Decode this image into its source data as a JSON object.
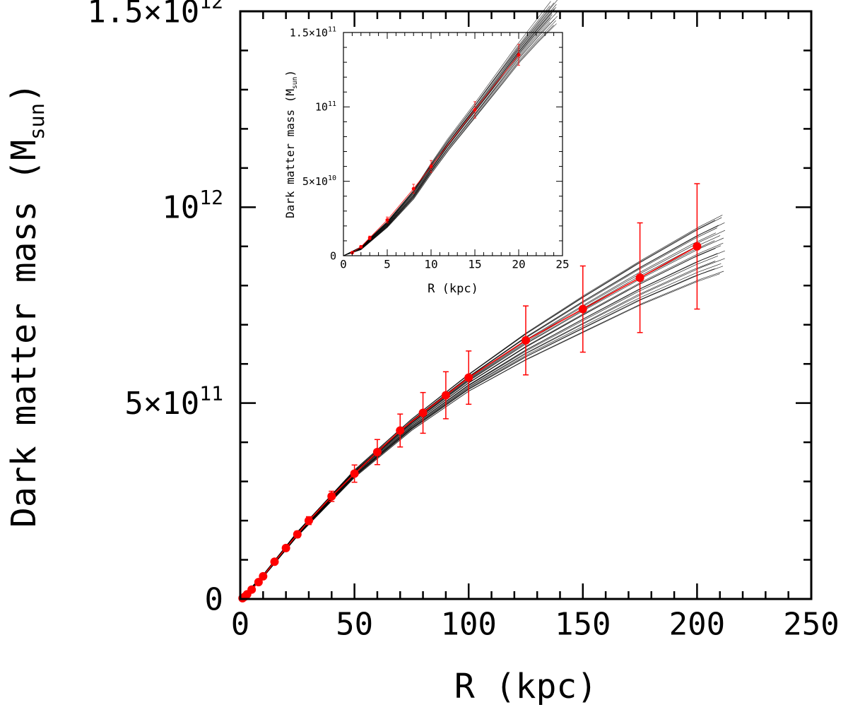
{
  "chart_data": [
    {
      "panel": "main",
      "type": "line",
      "xlabel": "R (kpc)",
      "ylabel": "Dark matter mass",
      "ylabel_unit": "M",
      "ylabel_unit_sub": "sun",
      "xlim": [
        0,
        250
      ],
      "ylim": [
        0,
        1500000000000.0
      ],
      "x_ticks": [
        0,
        50,
        100,
        150,
        200,
        250
      ],
      "x_tick_labels": [
        "0",
        "50",
        "100",
        "150",
        "200",
        "250"
      ],
      "y_ticks": [
        0,
        500000000000.0,
        1000000000000.0,
        1500000000000.0
      ],
      "y_tick_labels": [
        {
          "base": "0",
          "exp": ""
        },
        {
          "base": "5×10",
          "exp": "11"
        },
        {
          "base": "10",
          "exp": "12"
        },
        {
          "base": "1.5×10",
          "exp": "12"
        }
      ],
      "grid": false,
      "series": [
        {
          "color": "#ff0000",
          "style": "points with error bars and connecting line",
          "x": [
            1,
            2,
            3,
            5,
            8,
            10,
            15,
            20,
            25,
            30,
            40,
            50,
            60,
            70,
            80,
            90,
            100,
            125,
            150,
            175,
            200
          ],
          "y": [
            2000000000.0,
            6000000000.0,
            12000000000.0,
            24000000000.0,
            43000000000.0,
            58000000000.0,
            95000000000.0,
            130000000000.0,
            165000000000.0,
            200000000000.0,
            262000000000.0,
            320000000000.0,
            375000000000.0,
            430000000000.0,
            475000000000.0,
            520000000000.0,
            565000000000.0,
            660000000000.0,
            740000000000.0,
            820000000000.0,
            900000000000.0
          ],
          "y_err": [
            100000000.0,
            300000000.0,
            600000000.0,
            1200000000.0,
            2000000000.0,
            3000000000.0,
            5000000000.0,
            6500000000.0,
            8000000000.0,
            10000000000.0,
            13000000000.0,
            22000000000.0,
            32000000000.0,
            42000000000.0,
            52000000000.0,
            60000000000.0,
            68000000000.0,
            88000000000.0,
            110000000000.0,
            140000000000.0,
            160000000000.0
          ]
        },
        {
          "color": "#000000",
          "style": "bundle of model curves",
          "x": [
            0,
            10,
            25,
            50,
            75,
            100,
            125,
            150,
            175,
            200,
            210
          ],
          "y_low": [
            0,
            55000000000.0,
            160000000000.0,
            310000000000.0,
            430000000000.0,
            530000000000.0,
            610000000000.0,
            680000000000.0,
            750000000000.0,
            810000000000.0,
            830000000000.0
          ],
          "y_high": [
            0,
            62000000000.0,
            172000000000.0,
            330000000000.0,
            460000000000.0,
            575000000000.0,
            680000000000.0,
            775000000000.0,
            865000000000.0,
            950000000000.0,
            980000000000.0
          ]
        }
      ]
    },
    {
      "panel": "inset",
      "type": "line",
      "xlabel": "R (kpc)",
      "ylabel": "Dark matter mass",
      "ylabel_unit": "M",
      "ylabel_unit_sub": "sun",
      "xlim": [
        0,
        25
      ],
      "ylim": [
        0,
        150000000000.0
      ],
      "x_ticks": [
        0,
        5,
        10,
        15,
        20,
        25
      ],
      "x_tick_labels": [
        "0",
        "5",
        "10",
        "15",
        "20",
        "25"
      ],
      "y_ticks": [
        0,
        50000000000.0,
        100000000000.0,
        150000000000.0
      ],
      "y_tick_labels": [
        {
          "base": "0",
          "exp": ""
        },
        {
          "base": "5×10",
          "exp": "10"
        },
        {
          "base": "10",
          "exp": "11"
        },
        {
          "base": "1.5×10",
          "exp": "11"
        }
      ],
      "grid": false,
      "series": [
        {
          "color": "#ff0000",
          "style": "points with error bars and connecting line",
          "x": [
            1,
            2,
            3,
            5,
            8,
            10,
            15,
            20
          ],
          "y": [
            2000000000.0,
            6000000000.0,
            12000000000.0,
            24000000000.0,
            45000000000.0,
            60000000000.0,
            98000000000.0,
            135000000000.0
          ],
          "y_err": [
            500000000.0,
            800000000.0,
            1200000000.0,
            2000000000.0,
            3000000000.0,
            4000000000.0,
            5500000000.0,
            7000000000.0
          ]
        },
        {
          "color": "#000000",
          "style": "bundle of model curves",
          "x": [
            0,
            2,
            5,
            8,
            10,
            12,
            15,
            18,
            20,
            22,
            24
          ],
          "y_low": [
            0,
            4000000000.0,
            19000000000.0,
            38000000000.0,
            55000000000.0,
            71000000000.0,
            93000000000.0,
            115000000000.0,
            130000000000.0,
            143000000000.0,
            155000000000.0
          ],
          "y_high": [
            0,
            6000000000.0,
            23000000000.0,
            44000000000.0,
            62000000000.0,
            79000000000.0,
            102000000000.0,
            126000000000.0,
            142000000000.0,
            157000000000.0,
            172000000000.0
          ]
        }
      ]
    }
  ]
}
